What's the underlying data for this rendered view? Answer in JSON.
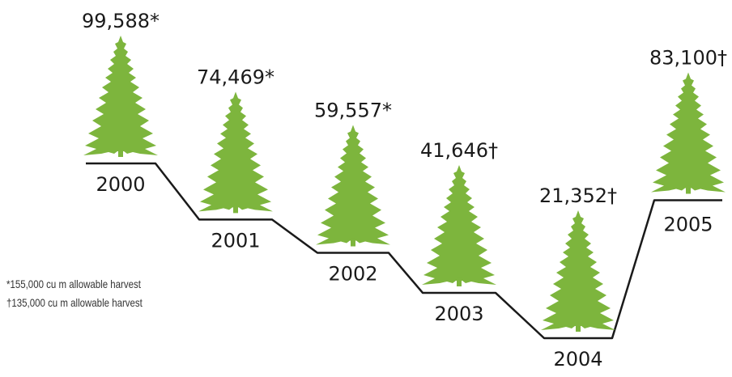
{
  "chart_data": {
    "type": "step",
    "categories": [
      "2000",
      "2001",
      "2002",
      "2003",
      "2004",
      "2005"
    ],
    "values": [
      99588,
      74469,
      59557,
      41646,
      21352,
      83100
    ],
    "value_labels": [
      "99,588*",
      "74,469*",
      "59,557*",
      "41,646†",
      "21,352†",
      "83,100†"
    ],
    "marker": "conifer-tree-icon",
    "colors": {
      "tree": "#7db53d",
      "line": "#1a1a1a",
      "text": "#1a1a1a"
    }
  },
  "footnotes": [
    "*155,000 cu m allowable harvest",
    "†135,000 cu m allowable harvest"
  ]
}
